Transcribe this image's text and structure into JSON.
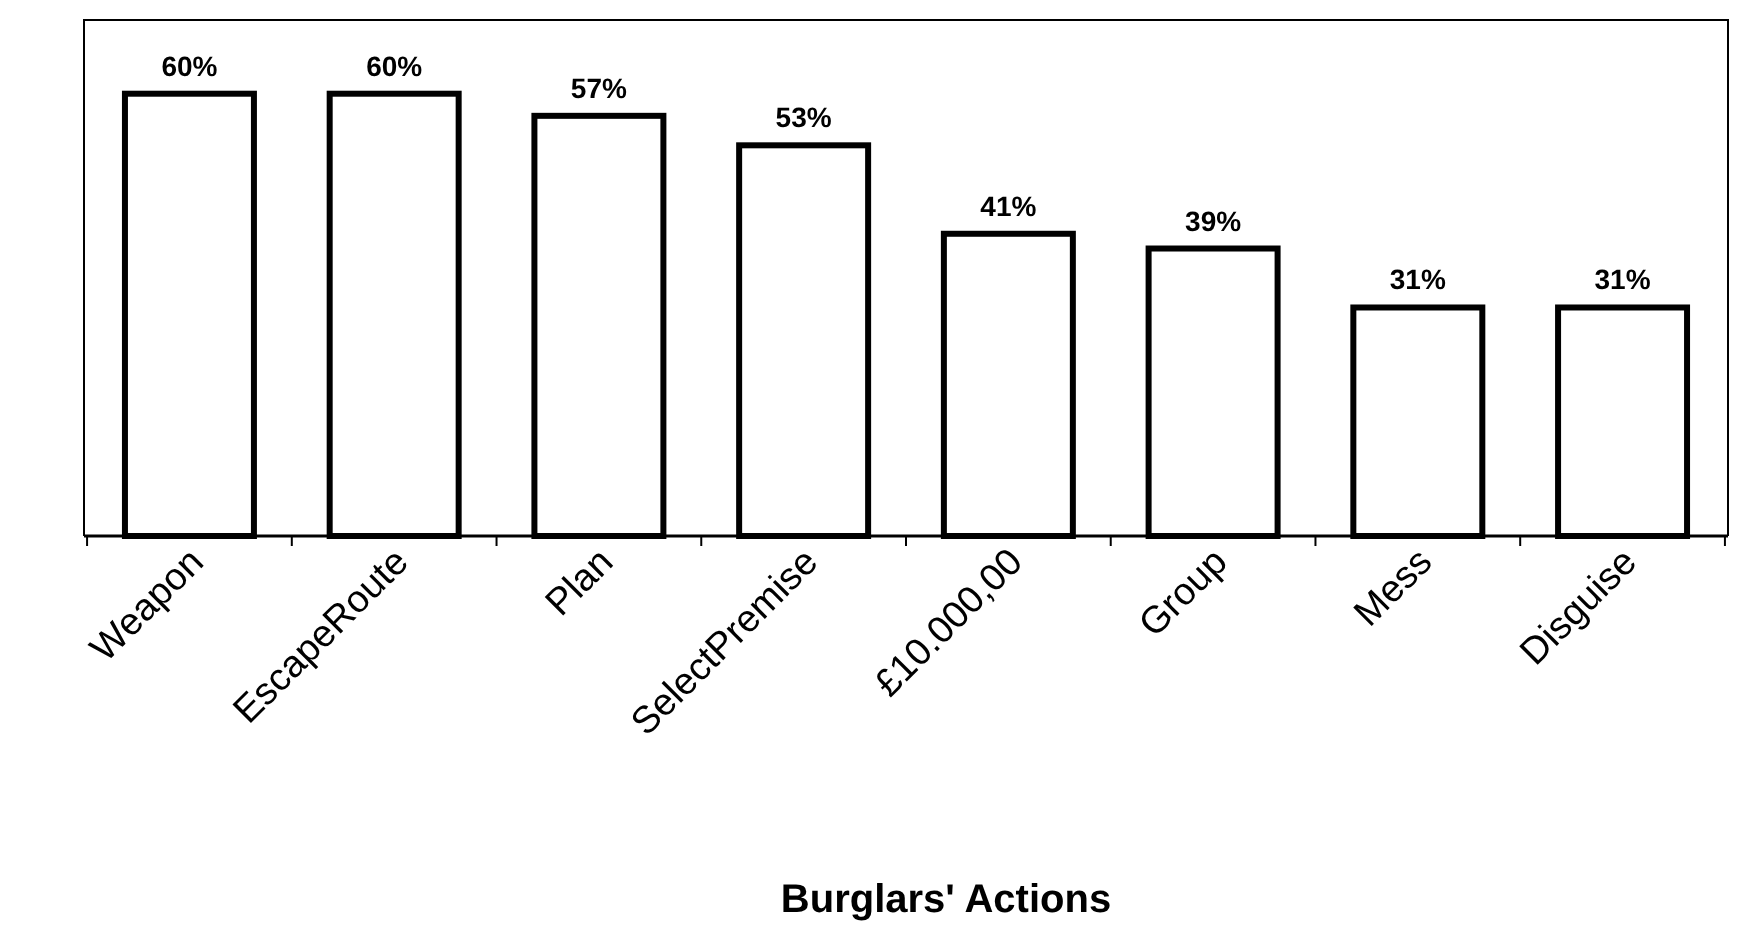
{
  "chart_data": {
    "type": "bar",
    "xlabel": "Burglars' Actions",
    "categories": [
      "Weapon",
      "EscapeRoute",
      "Plan",
      "SelectPremise",
      "£10.000,00",
      "Group",
      "Mess",
      "Disguise"
    ],
    "values": [
      60,
      60,
      57,
      53,
      41,
      39,
      31,
      31
    ],
    "value_labels": [
      "60%",
      "60%",
      "57%",
      "53%",
      "41%",
      "39%",
      "31%",
      "31%"
    ],
    "color": "#ffffff"
  }
}
